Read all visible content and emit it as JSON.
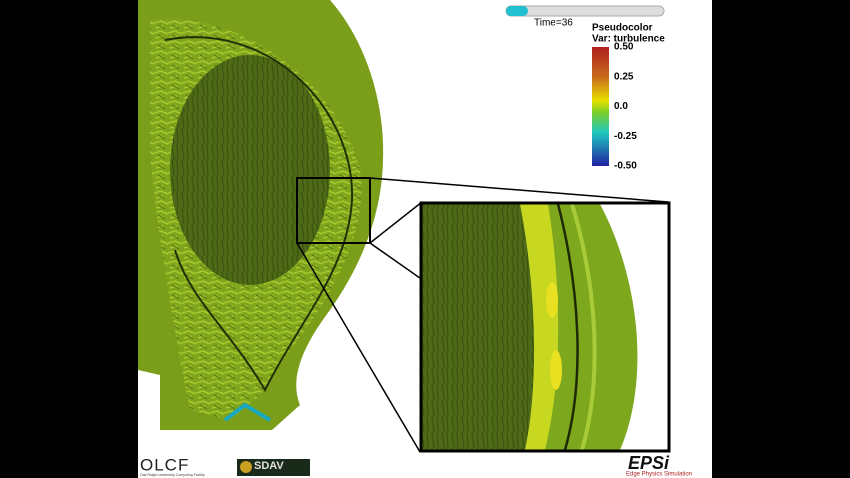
{
  "time_label": "Time=36",
  "legend": {
    "title": "Pseudocolor",
    "variable": "Var: turbulence",
    "tick_labels": [
      "0.50",
      "0.25",
      "0.0",
      "-0.25",
      "-0.50"
    ]
  },
  "logos": {
    "olcf": "OLCF",
    "olcf_caption": "Oak Ridge Leadership Computing Facility",
    "sdav": "SDAV",
    "epsi": "EPSi",
    "epsi_caption": "Edge Physics Simulation"
  }
}
